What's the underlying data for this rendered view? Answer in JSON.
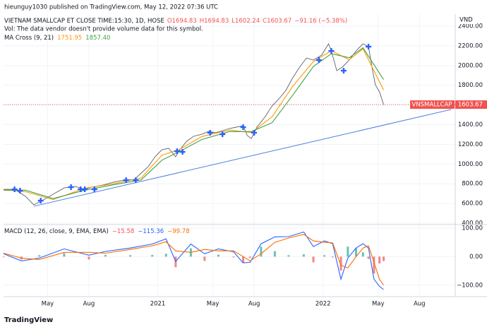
{
  "published": "hieunguy1030 published on TradingView.com, May 12, 2022 07:36 UTC",
  "footer": "TradingView",
  "chart_data": [
    {
      "type": "line",
      "title": "VIETNAM SMALLCAP ET CLOSE TIME:15:30, 1D, HOSE",
      "ohlc": [
        "O1694.83",
        "H1694.83",
        "L1602.24",
        "C1603.67",
        "−91.16 (−5.38%)"
      ],
      "volume_note": "Vol: The data vendor doesn't provide volume data for this symbol.",
      "ma_title": "MA Cross (9, 21)",
      "ma_values": [
        "1751.95",
        "1857.40"
      ],
      "axis_label": "VND",
      "symbol_tag": "VNSMALLCAP",
      "last_label": "1603.67",
      "grid": true,
      "xlim": [
        -3.2,
        29.6
      ],
      "xticks": [
        0,
        3,
        8,
        12,
        15,
        20,
        24,
        27
      ],
      "ylim": [
        386,
        2522
      ],
      "yticks": [
        {
          "value": 400,
          "label": "400.00"
        },
        {
          "value": 600,
          "label": "600.00"
        },
        {
          "value": 800,
          "label": "800.00"
        },
        {
          "value": 1000,
          "label": "1000.00"
        },
        {
          "value": 1200,
          "label": "1200.00"
        },
        {
          "value": 1400,
          "label": "1400.00"
        },
        {
          "value": 1600,
          "label": "1600.00"
        },
        {
          "value": 1800,
          "label": "1800.00"
        },
        {
          "value": 2000,
          "label": "2000.00"
        },
        {
          "value": 2200,
          "label": "2200.00"
        },
        {
          "value": 2400,
          "label": "2400.00"
        }
      ],
      "series": [
        {
          "color": "#5d606b",
          "x": [
            -3.2,
            -2.4,
            -1.6,
            -1.0,
            -0.4,
            0.4,
            1.2,
            2.0,
            2.7,
            3.2,
            4.0,
            4.8,
            5.5,
            6.3,
            6.8,
            7.3,
            7.8,
            8.3,
            8.8,
            9.3,
            9.6,
            10.1,
            10.6,
            11.2,
            11.7,
            12.2,
            12.7,
            13.2,
            13.7,
            14.2,
            14.5,
            14.8,
            15.2,
            15.8,
            16.3,
            16.8,
            17.3,
            17.8,
            18.3,
            18.8,
            19.3,
            19.9,
            20.4,
            20.6,
            21.0,
            21.4,
            21.9,
            22.4,
            22.9,
            23.3,
            23.6,
            23.8,
            24.1,
            24.4
          ],
          "values": [
            744,
            744,
            672,
            586,
            629,
            694,
            758,
            773,
            744,
            765,
            787,
            816,
            837,
            844,
            909,
            973,
            1074,
            1146,
            1160,
            1074,
            1146,
            1232,
            1282,
            1303,
            1332,
            1318,
            1339,
            1361,
            1375,
            1389,
            1289,
            1260,
            1375,
            1482,
            1590,
            1662,
            1748,
            1877,
            1984,
            2077,
            2056,
            2106,
            2221,
            2149,
            1948,
            1984,
            2056,
            2149,
            2221,
            2193,
            1948,
            1805,
            1733,
            1603.67
          ]
        },
        {
          "color": "#ff9800",
          "x": [
            -3.2,
            -1.6,
            0.4,
            2.7,
            4.8,
            6.8,
            8.3,
            9.6,
            11.2,
            13.2,
            14.8,
            16.3,
            17.8,
            19.3,
            20.6,
            21.9,
            22.9,
            24.4
          ],
          "values": [
            740,
            720,
            640,
            755,
            800,
            860,
            1090,
            1150,
            1280,
            1345,
            1320,
            1480,
            1790,
            2040,
            2150,
            2060,
            2170,
            1751.95
          ]
        },
        {
          "color": "#43a047",
          "x": [
            -3.2,
            -1.6,
            0.4,
            2.7,
            4.8,
            6.8,
            8.3,
            9.6,
            11.2,
            13.2,
            14.8,
            16.3,
            17.8,
            19.3,
            20.6,
            21.9,
            22.9,
            24.4
          ],
          "values": [
            735,
            735,
            650,
            735,
            790,
            840,
            1040,
            1130,
            1250,
            1330,
            1330,
            1420,
            1700,
            1990,
            2120,
            2080,
            2180,
            1857.4
          ]
        }
      ],
      "markers": {
        "color": "#2962ff",
        "x": [
          -2.4,
          -2.0,
          -0.5,
          1.7,
          2.4,
          2.7,
          3.4,
          5.7,
          6.4,
          9.4,
          9.8,
          11.8,
          12.7,
          14.2,
          15.0,
          19.7,
          20.6,
          21.5,
          23.3
        ],
        "values": [
          744,
          730,
          629,
          766,
          744,
          744,
          744,
          837,
          837,
          1131,
          1124,
          1318,
          1303,
          1375,
          1318,
          2056,
          2149,
          1948,
          2192
        ]
      },
      "trendline": {
        "color": "#4a7fe0",
        "x": [
          -1.0,
          29.3
        ],
        "values": [
          572,
          1554
        ]
      },
      "last_color": "#ef5350"
    },
    {
      "type": "macd",
      "title": "MACD (12, 26, close, 9, EMA, EMA)",
      "value_labels": [
        "−15.58",
        "−115.36",
        "−99.78"
      ],
      "grid": true,
      "xlim": [
        -3.2,
        29.6
      ],
      "xticks": [
        {
          "value": 0,
          "label": "May"
        },
        {
          "value": 3,
          "label": "Aug"
        },
        {
          "value": 8,
          "label": "2021"
        },
        {
          "value": 12,
          "label": "May"
        },
        {
          "value": 15,
          "label": "Aug"
        },
        {
          "value": 20,
          "label": "2022"
        },
        {
          "value": 24,
          "label": "May"
        },
        {
          "value": 27,
          "label": "Aug"
        }
      ],
      "ylim": [
        -140,
        112
      ],
      "yticks": [
        {
          "value": 100,
          "label": "100.00"
        },
        {
          "value": 0,
          "label": "0.00"
        },
        {
          "value": -100,
          "label": "−100.00"
        }
      ],
      "x": [
        -3.2,
        -1.9,
        -0.6,
        1.2,
        3.0,
        4.2,
        6.0,
        7.6,
        8.6,
        9.3,
        10.4,
        11.4,
        12.4,
        13.5,
        14.2,
        14.7,
        15.5,
        16.5,
        17.5,
        18.6,
        19.3,
        20.1,
        20.7,
        21.3,
        21.8,
        22.4,
        22.9,
        23.3,
        23.7,
        24.1,
        24.4
      ],
      "histogram": {
        "up_color": "#26a69a",
        "down_color": "#ef5350",
        "values": [
          -2,
          -10,
          5,
          12,
          -10,
          6,
          5,
          6,
          10,
          -37,
          29,
          -15,
          7,
          -3,
          -22,
          -5,
          35,
          19,
          5,
          8,
          -20,
          5,
          -3,
          -49,
          35,
          30,
          15,
          -8,
          -59,
          -24,
          -15.58
        ]
      },
      "series": [
        {
          "color": "#2962ff",
          "values": [
            10,
            -15,
            -5,
            27,
            5,
            18,
            30,
            44,
            62,
            -17,
            44,
            10,
            27,
            17,
            -22,
            -20,
            45,
            69,
            70,
            86,
            35,
            55,
            45,
            -79,
            -5,
            30,
            45,
            30,
            -79,
            -104,
            -115.36
          ]
        },
        {
          "color": "#ff6d00",
          "values": [
            12,
            -5,
            -10,
            15,
            15,
            12,
            25,
            38,
            52,
            20,
            15,
            25,
            20,
            20,
            0,
            -15,
            10,
            50,
            65,
            78,
            55,
            50,
            48,
            -30,
            -40,
            0,
            30,
            38,
            -20,
            -80,
            -99.78
          ]
        }
      ]
    }
  ]
}
